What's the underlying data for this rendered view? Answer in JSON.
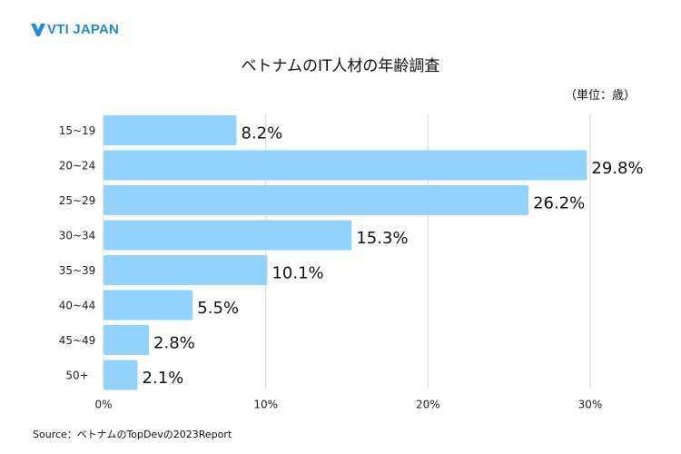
{
  "brand": {
    "logo_text": "VTI JAPAN",
    "color": "#1f8ad8"
  },
  "unit_label": "（単位：歳）",
  "source_note": "Source：ベトナムのTopDevの2023Report",
  "colors": {
    "bar": "#93d3fb",
    "grid": "#d9d9d9"
  },
  "chart_data": {
    "type": "bar",
    "orientation": "horizontal",
    "title": "ベトナムのIT人材の年齢調査",
    "categories": [
      "15~19",
      "20~24",
      "25~29",
      "30~34",
      "35~39",
      "40~44",
      "45~49",
      "50+"
    ],
    "values": [
      8.2,
      29.8,
      26.2,
      15.3,
      10.1,
      5.5,
      2.8,
      2.1
    ],
    "value_labels": [
      "8.2%",
      "29.8%",
      "26.2%",
      "15.3%",
      "10.1%",
      "5.5%",
      "2.8%",
      "2.1%"
    ],
    "xlim": [
      0,
      30
    ],
    "xticks": [
      0,
      10,
      20,
      30
    ],
    "xtick_labels": [
      "0%",
      "10%",
      "20%",
      "30%"
    ],
    "xlabel": "",
    "ylabel": "",
    "grid": true,
    "legend": "none"
  }
}
